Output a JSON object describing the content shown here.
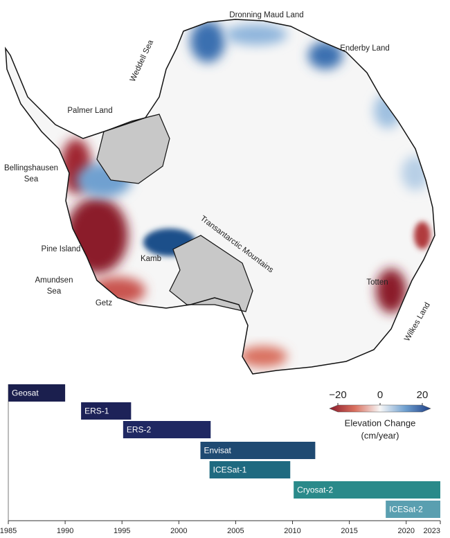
{
  "map": {
    "labels": {
      "dronning_maud": "Dronning Maud Land",
      "enderby": "Enderby Land",
      "weddell": "Weddell Sea",
      "palmer": "Palmer Land",
      "bellingshausen": [
        "Bellingshausen",
        "Sea"
      ],
      "pine_island": "Pine Island",
      "amundsen": [
        "Amundsen",
        "Sea"
      ],
      "kamb": "Kamb",
      "transantarctic": "Transantarctic Mountains",
      "getz": "Getz",
      "totten": "Totten",
      "wilkes": "Wilkes Land"
    }
  },
  "colorbar": {
    "lim": [
      -20,
      20
    ],
    "ticks": [
      {
        "value": -20,
        "label": "−20"
      },
      0,
      20
    ],
    "colors": [
      "#8b1a2a",
      "#d9705f",
      "#f7f7f7",
      "#6fa0d0",
      "#1e3f86"
    ],
    "label": [
      "Elevation Change",
      "(cm/year)"
    ]
  },
  "timeline": {
    "xlim": [
      1985,
      2023
    ],
    "xticks": [
      1985,
      1990,
      1995,
      2000,
      2005,
      2010,
      2015,
      2020,
      2023
    ],
    "missions": [
      {
        "name": "Geosat",
        "start": 1985,
        "end": 1990,
        "color": "#1b1f4e"
      },
      {
        "name": "ERS-1",
        "start": 1991.4,
        "end": 1995.8,
        "color": "#1d2258"
      },
      {
        "name": "ERS-2",
        "start": 1995.1,
        "end": 2002.8,
        "color": "#1f2862"
      },
      {
        "name": "Envisat",
        "start": 2001.9,
        "end": 2012.0,
        "color": "#1f4a72"
      },
      {
        "name": "ICESat-1",
        "start": 2002.7,
        "end": 2009.8,
        "color": "#1f6a80"
      },
      {
        "name": "Cryosat-2",
        "start": 2010.1,
        "end": 2023,
        "color": "#2a8a8a"
      },
      {
        "name": "ICESat-2",
        "start": 2018.2,
        "end": 2023,
        "color": "#5a9fb0"
      }
    ]
  }
}
